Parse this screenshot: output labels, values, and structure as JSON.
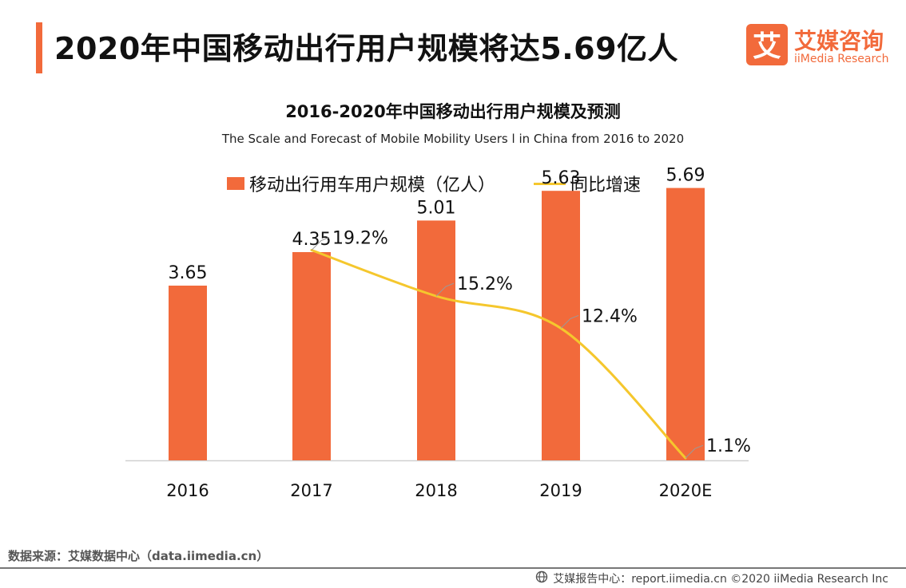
{
  "header": {
    "title": "2020年中国移动出行用户规模将达5.69亿人",
    "logo": {
      "cn": "艾媒咨询",
      "en": "iiMedia Research",
      "mark": "艾",
      "color": "#f26a3b"
    }
  },
  "chart_data": {
    "type": "bar",
    "title": "2016-2020年中国移动出行用户规模及预测",
    "subtitle": "The Scale and Forecast of Mobile Mobility Users l in China from 2016 to 2020",
    "categories": [
      "2016",
      "2017",
      "2018",
      "2019",
      "2020E"
    ],
    "series": [
      {
        "name": "移动出行用车用户规模（亿人）",
        "kind": "bar",
        "color": "#f26a3b",
        "values": [
          3.65,
          4.35,
          5.01,
          5.63,
          5.69
        ],
        "labels": [
          "3.65",
          "4.35",
          "5.01",
          "5.63",
          "5.69"
        ]
      },
      {
        "name": "同比增速",
        "kind": "line",
        "color": "#f5c72d",
        "values": [
          null,
          19.2,
          15.2,
          12.4,
          1.1
        ],
        "labels": [
          "",
          "19.2%",
          "15.2%",
          "12.4%",
          "1.1%"
        ]
      }
    ],
    "bar_ylim": [
      0,
      6
    ],
    "line_ylim": [
      0,
      25
    ],
    "grid": false,
    "legend": "top-center"
  },
  "footer": {
    "source": "数据来源：艾媒数据中心（data.iimedia.cn）",
    "copyright": "艾媒报告中心：report.iimedia.cn ©2020  iiMedia Research  Inc"
  }
}
